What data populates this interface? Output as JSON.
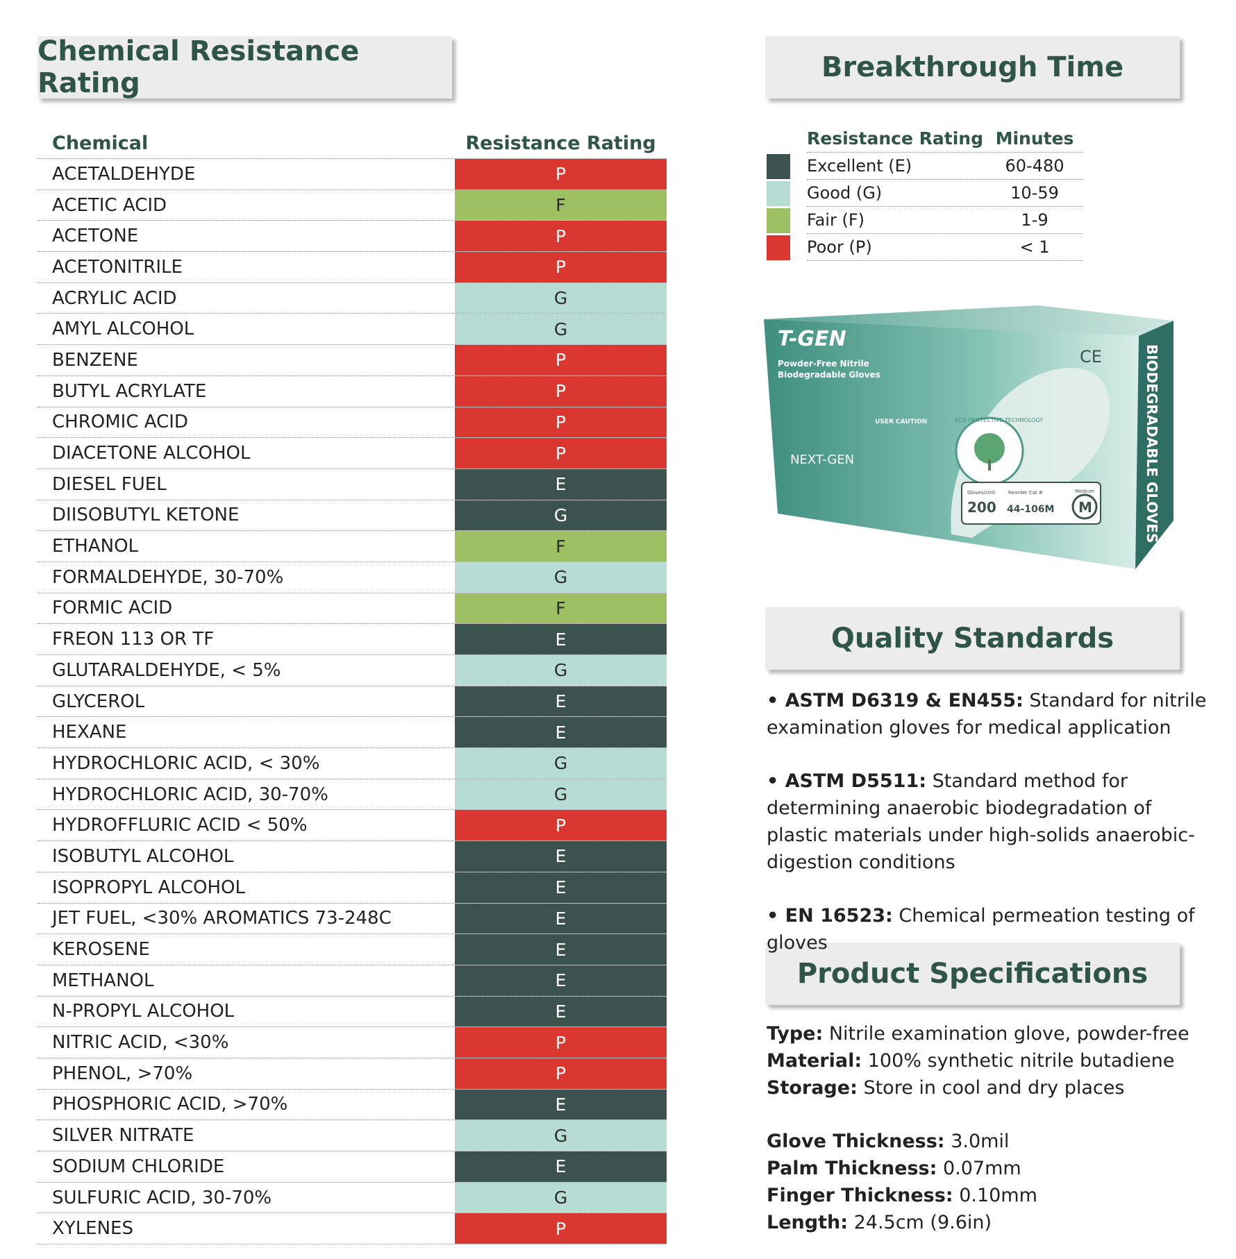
{
  "headers": {
    "chemical": "Chemical Resistance Rating",
    "breakthrough": "Breakthrough Time",
    "quality": "Quality Standards",
    "specs": "Product Specifications"
  },
  "table": {
    "col_chemical": "Chemical",
    "col_rating": "Resistance Rating",
    "rows": [
      {
        "name": "ACETALDEHYDE",
        "rating": "P"
      },
      {
        "name": "ACETIC ACID",
        "rating": "F"
      },
      {
        "name": "ACETONE",
        "rating": "P"
      },
      {
        "name": "ACETONITRILE",
        "rating": "P"
      },
      {
        "name": "ACRYLIC ACID",
        "rating": "G"
      },
      {
        "name": "AMYL ALCOHOL",
        "rating": "G"
      },
      {
        "name": "BENZENE",
        "rating": "P"
      },
      {
        "name": "BUTYL ACRYLATE",
        "rating": "P"
      },
      {
        "name": "CHROMIC ACID",
        "rating": "P"
      },
      {
        "name": "DIACETONE ALCOHOL",
        "rating": "P"
      },
      {
        "name": "DIESEL FUEL",
        "rating": "E"
      },
      {
        "name": "DIISOBUTYL KETONE",
        "rating": "G",
        "style": "E"
      },
      {
        "name": "ETHANOL",
        "rating": "F"
      },
      {
        "name": "FORMALDEHYDE, 30-70%",
        "rating": "G"
      },
      {
        "name": "FORMIC ACID",
        "rating": "F"
      },
      {
        "name": "FREON 113 OR TF",
        "rating": "E"
      },
      {
        "name": "GLUTARALDEHYDE, < 5%",
        "rating": "G"
      },
      {
        "name": "GLYCEROL",
        "rating": "E"
      },
      {
        "name": "HEXANE",
        "rating": "E"
      },
      {
        "name": "HYDROCHLORIC ACID, < 30%",
        "rating": "G"
      },
      {
        "name": "HYDROCHLORIC ACID, 30-70%",
        "rating": "G"
      },
      {
        "name": "HYDROFFLURIC ACID < 50%",
        "rating": "P"
      },
      {
        "name": "ISOBUTYL ALCOHOL",
        "rating": "E"
      },
      {
        "name": "ISOPROPYL ALCOHOL",
        "rating": "E"
      },
      {
        "name": "JET FUEL, <30% AROMATICS 73-248C",
        "rating": "E"
      },
      {
        "name": "KEROSENE",
        "rating": "E"
      },
      {
        "name": "METHANOL",
        "rating": "E"
      },
      {
        "name": "N-PROPYL ALCOHOL",
        "rating": "E"
      },
      {
        "name": "NITRIC ACID, <30%",
        "rating": "P"
      },
      {
        "name": "PHENOL, >70%",
        "rating": "P"
      },
      {
        "name": "PHOSPHORIC ACID, >70%",
        "rating": "E"
      },
      {
        "name": "SILVER NITRATE",
        "rating": "G"
      },
      {
        "name": "SODIUM CHLORIDE",
        "rating": "E"
      },
      {
        "name": "SULFURIC ACID, 30-70%",
        "rating": "G"
      },
      {
        "name": "XYLENES",
        "rating": "P"
      }
    ]
  },
  "legend": {
    "col_rating": "Resistance Rating",
    "col_minutes": "Minutes",
    "rows": [
      {
        "label": "Excellent (E)",
        "minutes": "60-480",
        "color": "#3c524f"
      },
      {
        "label": "Good (G)",
        "minutes": "10-59",
        "color": "#b6dcd3"
      },
      {
        "label": "Fair (F)",
        "minutes": "1-9",
        "color": "#9cc062"
      },
      {
        "label": "Poor (P)",
        "minutes": "< 1",
        "color": "#d9372f"
      }
    ]
  },
  "product_box": {
    "brand": "T-GEN",
    "line1": "Powder-Free Nitrile",
    "line2": "Biodegradable Gloves",
    "ce": "CE",
    "side": "BIODEGRADABLE GLOVES",
    "nextgen": "NEXT-GEN",
    "caution": "USER CAUTION",
    "gloves_unit_label": "Gloves/Unit",
    "gloves_unit": "200",
    "reorder_label": "Reorder Cat #",
    "reorder": "44-106M",
    "size_label": "Medium",
    "size": "M",
    "seal": "ECO PROTECTIVE TECHNOLOGY"
  },
  "quality": [
    {
      "bold": "• ASTM D6319 & EN455:",
      "text": " Standard for nitrile examination gloves for medical application"
    },
    {
      "bold": "• ASTM D5511:",
      "text": " Standard method for determining anaerobic biodegradation of plastic materials under high-solids anaerobic-digestion conditions"
    },
    {
      "bold": "• EN 16523:",
      "text": " Chemical permeation testing of gloves"
    }
  ],
  "specs": {
    "group1": [
      {
        "bold": "Type:",
        "text": " Nitrile examination glove, powder-free"
      },
      {
        "bold": "Material:",
        "text": " 100% synthetic nitrile butadiene"
      },
      {
        "bold": "Storage:",
        "text": " Store in cool and dry places"
      }
    ],
    "group2": [
      {
        "bold": "Glove Thickness:",
        "text": " 3.0mil"
      },
      {
        "bold": "Palm Thickness:",
        "text": " 0.07mm"
      },
      {
        "bold": "Finger Thickness:",
        "text": " 0.10mm"
      },
      {
        "bold": "Length:",
        "text": " 24.5cm (9.6in)"
      }
    ]
  }
}
